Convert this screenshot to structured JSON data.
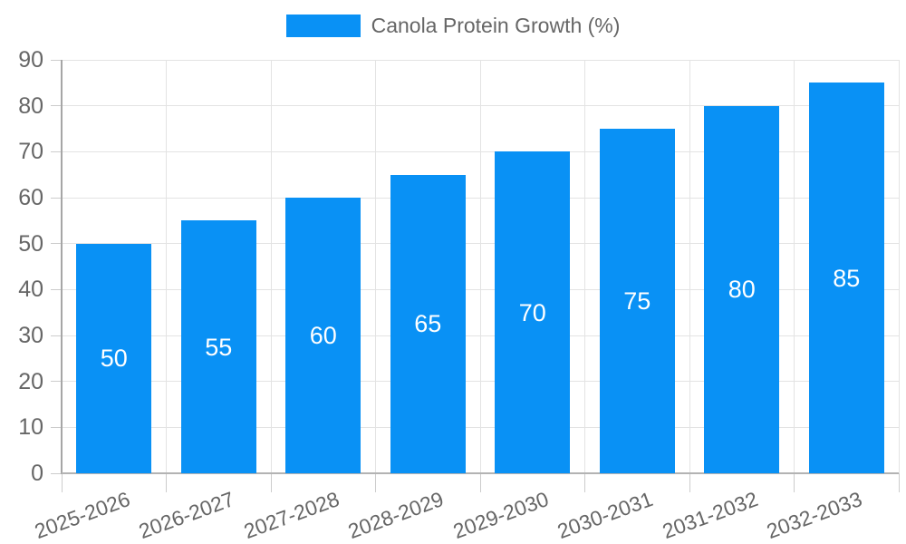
{
  "legend": {
    "label": "Canola Protein Growth (%)"
  },
  "colors": {
    "bar": "#0991f5",
    "tick_text": "#666666",
    "grid": "#e3e3e3",
    "axis_border_y": "#a6a6a6",
    "axis_border_x": "#b3b3b3",
    "tick_mark": "#cccccc",
    "value_label": "#ffffff",
    "background": "#ffffff"
  },
  "chart_data": {
    "type": "bar",
    "title": "",
    "series_name": "Canola Protein Growth (%)",
    "categories": [
      "2025-2026",
      "2026-2027",
      "2027-2028",
      "2028-2029",
      "2029-2030",
      "2030-2031",
      "2031-2032",
      "2032-2033"
    ],
    "values": [
      50,
      55,
      60,
      65,
      70,
      75,
      80,
      85
    ],
    "xlabel": "",
    "ylabel": "",
    "ylim": [
      0,
      90
    ],
    "ytick_step": 10,
    "grid": true,
    "legend_position": "top",
    "value_labels": "inside-center"
  }
}
